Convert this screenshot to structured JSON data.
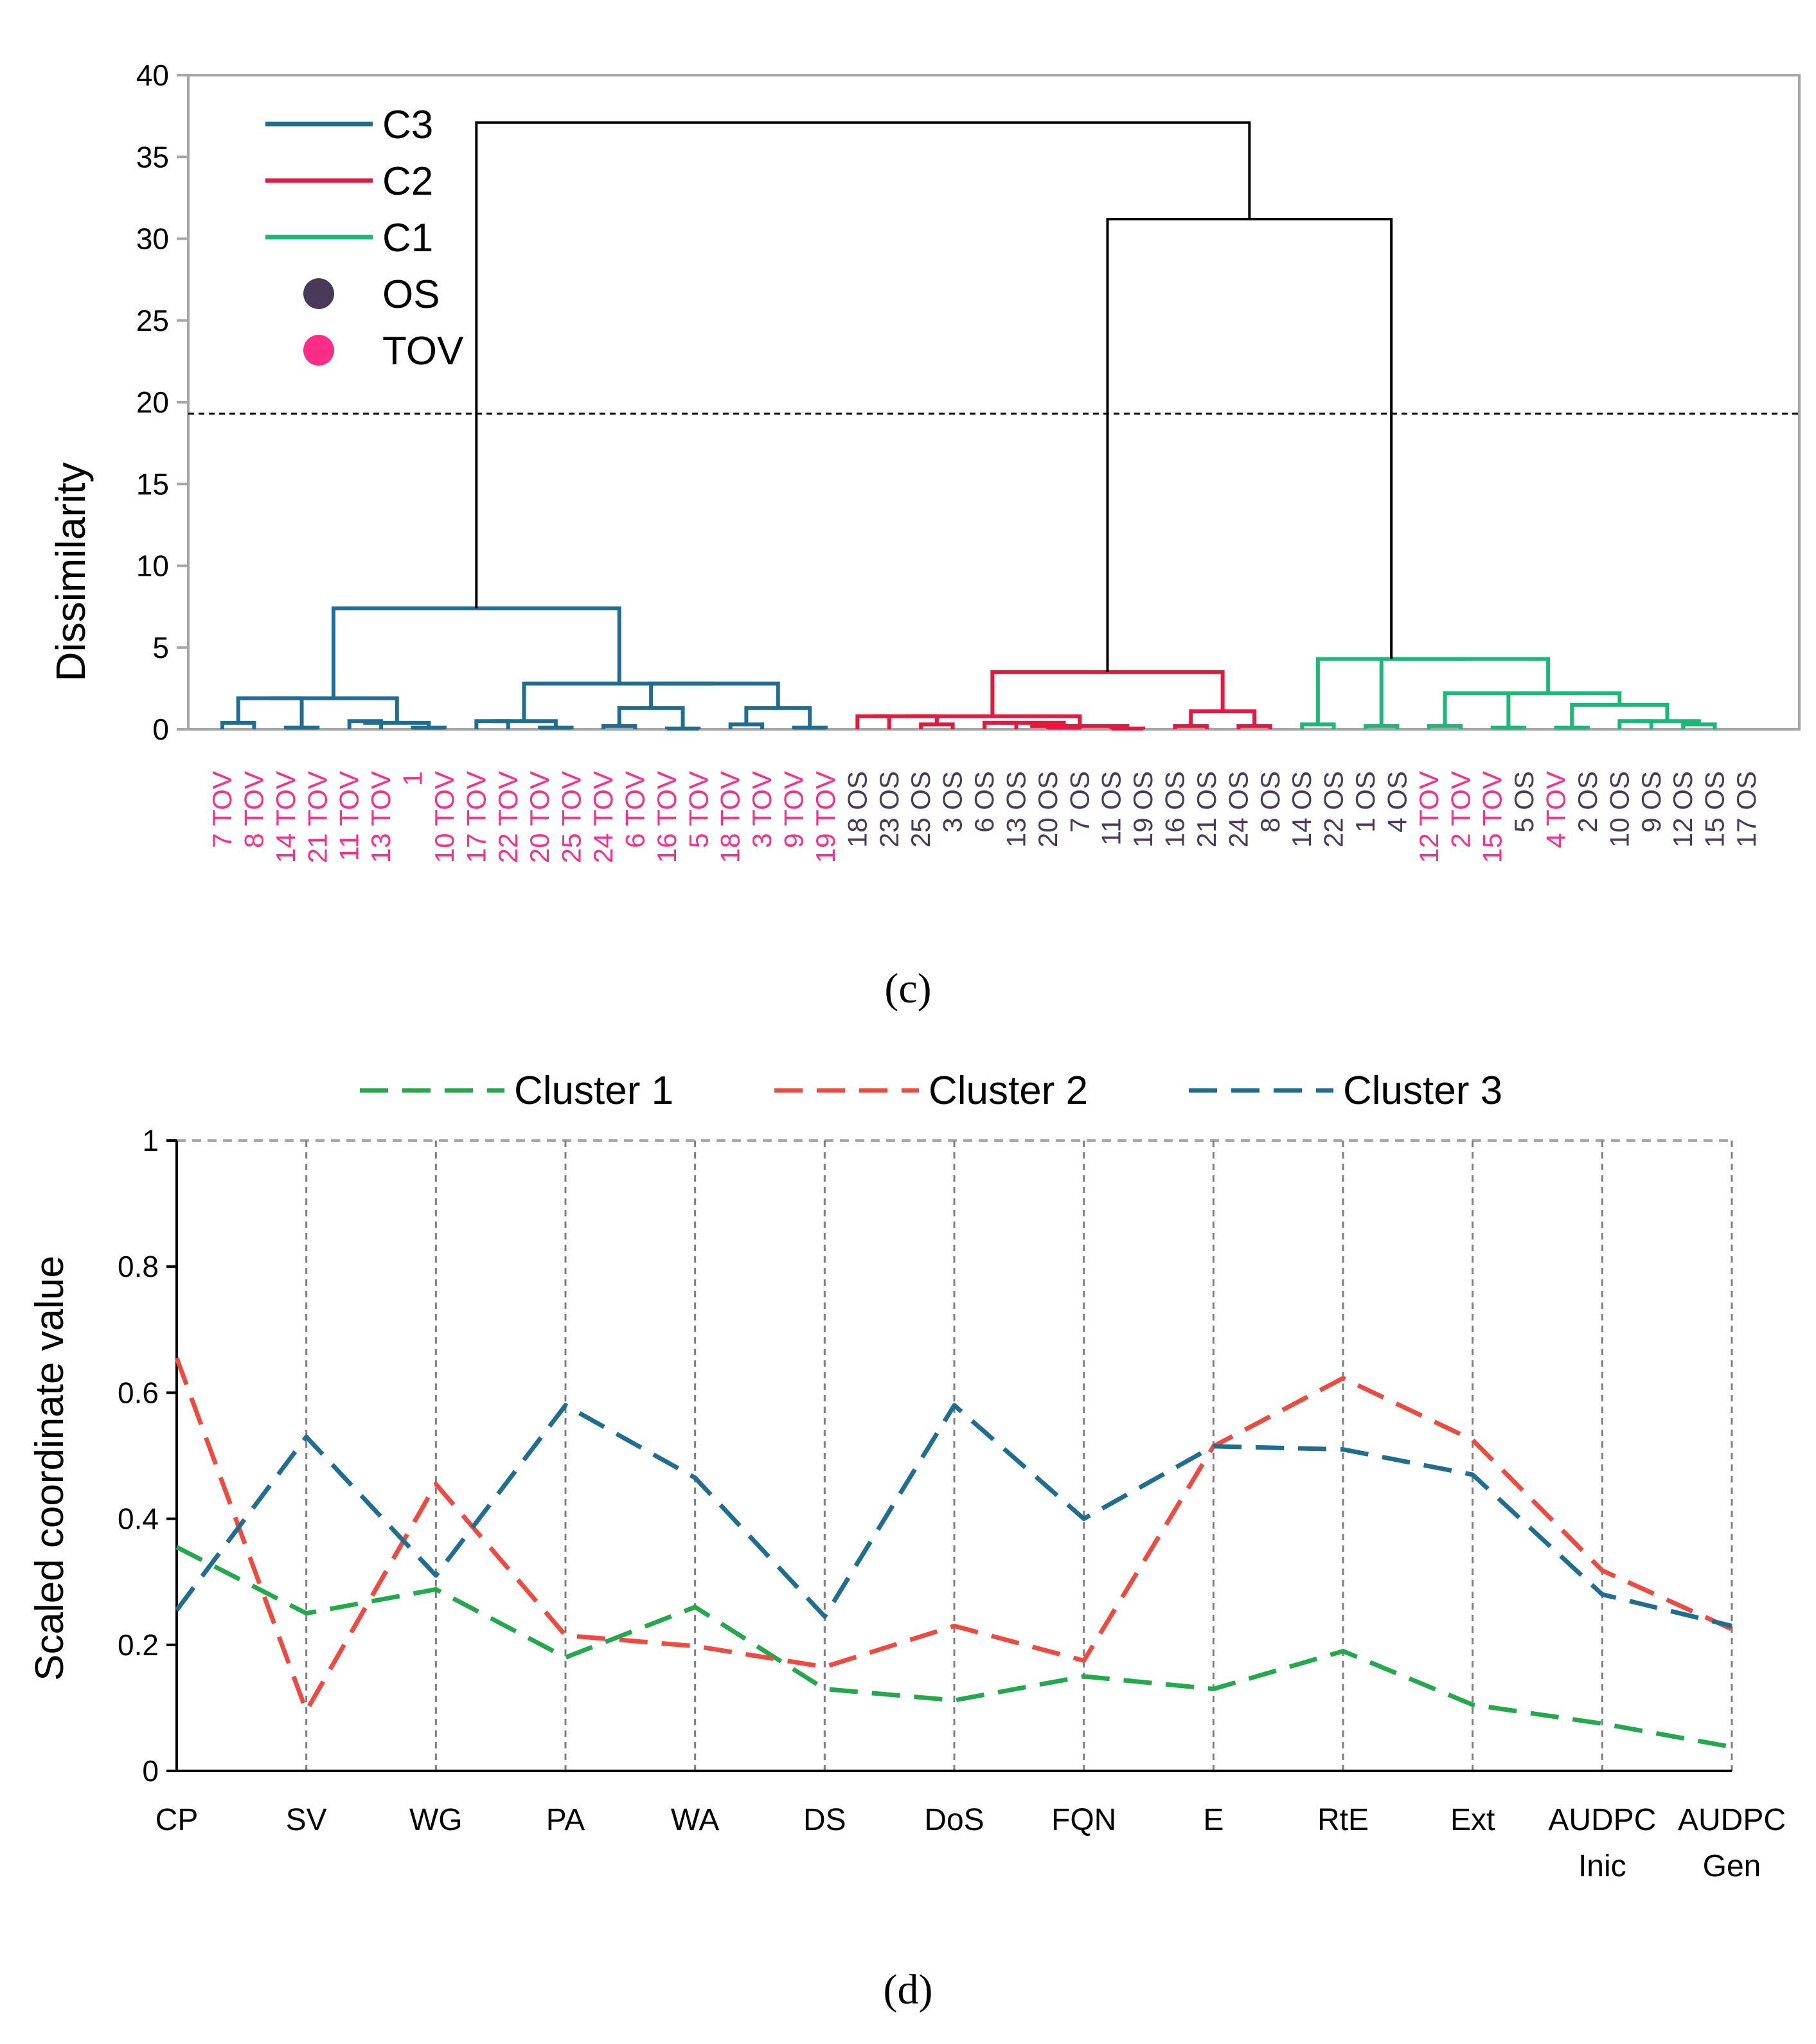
{
  "chart_data": [
    {
      "type": "dendrogram",
      "panel_label": "(c)",
      "ylabel": "Dissimilarity",
      "ylim": [
        0,
        40
      ],
      "yticks": [
        0,
        5,
        10,
        15,
        20,
        25,
        30,
        35,
        40
      ],
      "truncation_level": 19.3,
      "legend": [
        {
          "label": "C3",
          "kind": "line",
          "color": "#1f6e91"
        },
        {
          "label": "C2",
          "kind": "line",
          "color": "#e8173f"
        },
        {
          "label": "C1",
          "kind": "line",
          "color": "#1db877"
        },
        {
          "label": "OS",
          "kind": "dot",
          "color": "#4a3a5a"
        },
        {
          "label": "TOV",
          "kind": "dot",
          "color": "#ff2d87"
        }
      ],
      "leaves": [
        {
          "label": "7 TOV",
          "group": "TOV"
        },
        {
          "label": "8 TOV",
          "group": "TOV"
        },
        {
          "label": "14 TOV",
          "group": "TOV"
        },
        {
          "label": "21 TOV",
          "group": "TOV"
        },
        {
          "label": "11 TOV",
          "group": "TOV"
        },
        {
          "label": "13 TOV",
          "group": "TOV"
        },
        {
          "label": "1",
          "group": "TOV"
        },
        {
          "label": "10 TOV",
          "group": "TOV"
        },
        {
          "label": "17 TOV",
          "group": "TOV"
        },
        {
          "label": "22 TOV",
          "group": "TOV"
        },
        {
          "label": "20 TOV",
          "group": "TOV"
        },
        {
          "label": "25 TOV",
          "group": "TOV"
        },
        {
          "label": "24 TOV",
          "group": "TOV"
        },
        {
          "label": "6 TOV",
          "group": "TOV"
        },
        {
          "label": "16 TOV",
          "group": "TOV"
        },
        {
          "label": "5 TOV",
          "group": "TOV"
        },
        {
          "label": "18 TOV",
          "group": "TOV"
        },
        {
          "label": "3 TOV",
          "group": "TOV"
        },
        {
          "label": "9 TOV",
          "group": "TOV"
        },
        {
          "label": "19 TOV",
          "group": "TOV"
        },
        {
          "label": "18 OS",
          "group": "OS"
        },
        {
          "label": "23 OS",
          "group": "OS"
        },
        {
          "label": "25 OS",
          "group": "OS"
        },
        {
          "label": "3 OS",
          "group": "OS"
        },
        {
          "label": "6 OS",
          "group": "OS"
        },
        {
          "label": "13 OS",
          "group": "OS"
        },
        {
          "label": "20 OS",
          "group": "OS"
        },
        {
          "label": "7 OS",
          "group": "OS"
        },
        {
          "label": "11 OS",
          "group": "OS"
        },
        {
          "label": "19 OS",
          "group": "OS"
        },
        {
          "label": "16 OS",
          "group": "OS"
        },
        {
          "label": "21 OS",
          "group": "OS"
        },
        {
          "label": "24 OS",
          "group": "OS"
        },
        {
          "label": "8 OS",
          "group": "OS"
        },
        {
          "label": "14 OS",
          "group": "OS"
        },
        {
          "label": "22 OS",
          "group": "OS"
        },
        {
          "label": "1 OS",
          "group": "OS"
        },
        {
          "label": "4 OS",
          "group": "OS"
        },
        {
          "label": "12 TOV",
          "group": "TOV"
        },
        {
          "label": "2 TOV",
          "group": "TOV"
        },
        {
          "label": "15 TOV",
          "group": "TOV"
        },
        {
          "label": "5 OS",
          "group": "OS"
        },
        {
          "label": "4 TOV",
          "group": "TOV"
        },
        {
          "label": "2 OS",
          "group": "OS"
        },
        {
          "label": "10 OS",
          "group": "OS"
        },
        {
          "label": "9 OS",
          "group": "OS"
        },
        {
          "label": "12 OS",
          "group": "OS"
        },
        {
          "label": "15 OS",
          "group": "OS"
        },
        {
          "label": "17 OS",
          "group": "OS"
        }
      ],
      "links": [
        {
          "c": "C3",
          "l": 0,
          "r": 1,
          "h": 0.4
        },
        {
          "c": "C3",
          "l": 2,
          "r": 3,
          "h": 0.1
        },
        {
          "c": "C3",
          "l": 49,
          "r": 50,
          "h": 1.9
        },
        {
          "c": "C3",
          "l": 4,
          "r": 5,
          "h": 0.5
        },
        {
          "c": "C3",
          "l": 6,
          "r": 7,
          "h": 0.1
        },
        {
          "c": "C3",
          "l": 52,
          "r": 53,
          "h": 0.4
        },
        {
          "c": "C3",
          "l": 51,
          "r": 54,
          "h": 1.9
        },
        {
          "c": "C3",
          "l": 8,
          "r": 9,
          "h": 0.5
        },
        {
          "c": "C3",
          "l": 10,
          "r": 11,
          "h": 0.1
        },
        {
          "c": "C3",
          "l": 56,
          "r": 57,
          "h": 0.5
        },
        {
          "c": "C3",
          "l": 12,
          "r": 13,
          "h": 0.2
        },
        {
          "c": "C3",
          "l": 14,
          "r": 15,
          "h": 0.05
        },
        {
          "c": "C3",
          "l": 59,
          "r": 60,
          "h": 1.3
        },
        {
          "c": "C3",
          "l": 16,
          "r": 17,
          "h": 0.3
        },
        {
          "c": "C3",
          "l": 18,
          "r": 19,
          "h": 0.1
        },
        {
          "c": "C3",
          "l": 62,
          "r": 63,
          "h": 1.3
        },
        {
          "c": "C3",
          "l": 61,
          "r": 64,
          "h": 2.8
        },
        {
          "c": "C3",
          "l": 58,
          "r": 65,
          "h": 2.8
        },
        {
          "c": "C3",
          "l": 55,
          "r": 66,
          "h": 7.4
        },
        {
          "c": "C2",
          "l": 20,
          "r": 21,
          "h": 0.8
        },
        {
          "c": "C2",
          "l": 22,
          "r": 23,
          "h": 0.3
        },
        {
          "c": "C2",
          "l": 68,
          "r": 69,
          "h": 0.8
        },
        {
          "c": "C2",
          "l": 24,
          "r": 25,
          "h": 0.4
        },
        {
          "c": "C2",
          "l": 26,
          "r": 27,
          "h": 0.1
        },
        {
          "c": "C2",
          "l": 71,
          "r": 72,
          "h": 0.4
        },
        {
          "c": "C2",
          "l": 28,
          "r": 29,
          "h": 0.05
        },
        {
          "c": "C2",
          "l": 73,
          "r": 74,
          "h": 0.2
        },
        {
          "c": "C2",
          "l": 70,
          "r": 75,
          "h": 0.8
        },
        {
          "c": "C2",
          "l": 30,
          "r": 31,
          "h": 0.2
        },
        {
          "c": "C2",
          "l": 32,
          "r": 33,
          "h": 0.2
        },
        {
          "c": "C2",
          "l": 77,
          "r": 78,
          "h": 1.1
        },
        {
          "c": "C2",
          "l": 76,
          "r": 79,
          "h": 3.5
        },
        {
          "c": "C1",
          "l": 34,
          "r": 35,
          "h": 0.3
        },
        {
          "c": "C1",
          "l": 36,
          "r": 37,
          "h": 0.2
        },
        {
          "c": "C1",
          "l": 38,
          "r": 39,
          "h": 0.2
        },
        {
          "c": "C1",
          "l": 40,
          "r": 41,
          "h": 0.1
        },
        {
          "c": "C1",
          "l": 83,
          "r": 84,
          "h": 2.2
        },
        {
          "c": "C1",
          "l": 42,
          "r": 43,
          "h": 0.1
        },
        {
          "c": "C1",
          "l": 44,
          "r": 45,
          "h": 0.5
        },
        {
          "c": "C1",
          "l": 46,
          "r": 47,
          "h": 0.3
        },
        {
          "c": "C1",
          "l": 87,
          "r": 88,
          "h": 0.5
        },
        {
          "c": "C1",
          "l": 86,
          "r": 89,
          "h": 1.5
        },
        {
          "c": "C1",
          "l": 85,
          "r": 90,
          "h": 2.2
        },
        {
          "c": "C1",
          "l": 82,
          "r": 91,
          "h": 4.3
        },
        {
          "c": "C1",
          "l": 81,
          "r": 92,
          "h": 4.3
        },
        {
          "c": "top",
          "l": 80,
          "r": 93,
          "h": 31.2
        },
        {
          "c": "top",
          "l": 67,
          "r": 94,
          "h": 37.1
        }
      ]
    },
    {
      "type": "line",
      "panel_label": "(d)",
      "ylabel": "Scaled coordinate value",
      "ylim": [
        0,
        1
      ],
      "yticks": [
        0,
        0.2,
        0.4,
        0.6,
        0.8,
        1
      ],
      "categories": [
        [
          "CP"
        ],
        [
          "SV"
        ],
        [
          "WG"
        ],
        [
          "PA"
        ],
        [
          "WA"
        ],
        [
          "DS"
        ],
        [
          "DoS"
        ],
        [
          "FQN"
        ],
        [
          "E"
        ],
        [
          "RtE"
        ],
        [
          "Ext"
        ],
        [
          "AUDPC",
          "Inic"
        ],
        [
          "AUDPC",
          "Gen"
        ]
      ],
      "series": [
        {
          "name": "Cluster 1",
          "color": "#22a94b",
          "values": [
            0.355,
            0.25,
            0.288,
            0.18,
            0.26,
            0.13,
            0.112,
            0.15,
            0.13,
            0.19,
            0.105,
            0.075,
            0.038
          ]
        },
        {
          "name": "Cluster 2",
          "color": "#f0493f",
          "values": [
            0.655,
            0.095,
            0.455,
            0.215,
            0.198,
            0.165,
            0.23,
            0.175,
            0.515,
            0.623,
            0.525,
            0.318,
            0.225
          ]
        },
        {
          "name": "Cluster 3",
          "color": "#1f6e91",
          "values": [
            0.255,
            0.53,
            0.31,
            0.58,
            0.465,
            0.245,
            0.58,
            0.4,
            0.515,
            0.51,
            0.47,
            0.28,
            0.23
          ]
        }
      ]
    }
  ]
}
